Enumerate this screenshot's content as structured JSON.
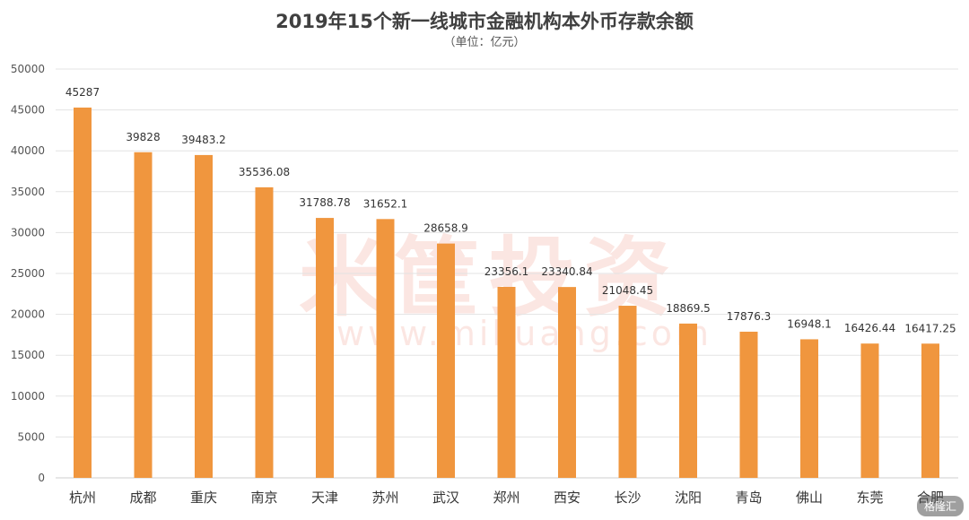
{
  "chart_data": {
    "type": "bar",
    "title": "2019年15个新一线城市金融机构本外币存款余额",
    "subtitle": "（单位：亿元）",
    "categories": [
      "杭州",
      "成都",
      "重庆",
      "南京",
      "天津",
      "苏州",
      "武汉",
      "郑州",
      "西安",
      "长沙",
      "沈阳",
      "青岛",
      "佛山",
      "东莞",
      "合肥"
    ],
    "values": [
      45287,
      39828,
      39483.2,
      35536.08,
      31788.78,
      31652.1,
      28658.9,
      23356.1,
      23340.84,
      21048.45,
      18869.5,
      17876.3,
      16948.1,
      16426.44,
      16417.25
    ],
    "data_labels": [
      "45287",
      "39828",
      "39483.2",
      "35536.08",
      "31788.78",
      "31652.1",
      "28658.9",
      "23356.1",
      "23340.84",
      "21048.45",
      "18869.5",
      "17876.3",
      "16948.1",
      "16426.44",
      "16417.25"
    ],
    "yticks": [
      "0",
      "5000",
      "10000",
      "15000",
      "20000",
      "25000",
      "30000",
      "35000",
      "40000",
      "45000",
      "50000"
    ],
    "ylim": [
      0,
      50000
    ],
    "grid": true,
    "legend": "none",
    "bar_color": "#f0963e",
    "grid_color": "#e3e3e3"
  },
  "watermark": {
    "main": "米筐投资",
    "url": "www.mikuang.com"
  },
  "brand_tag": "格隆汇"
}
